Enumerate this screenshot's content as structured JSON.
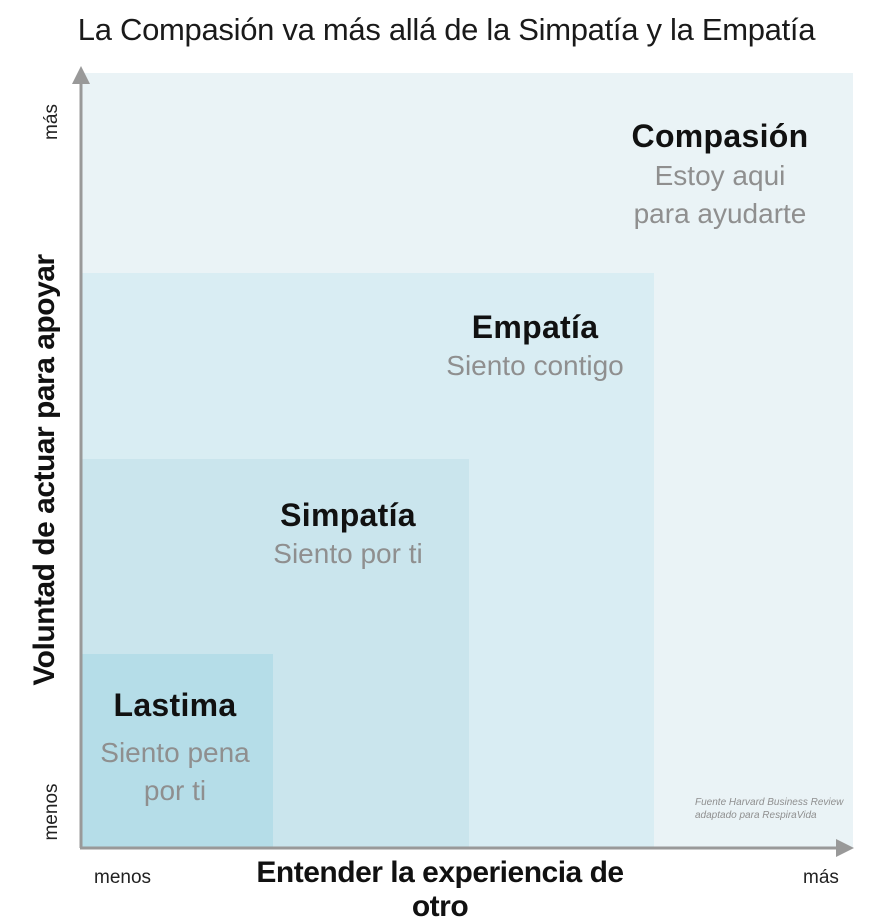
{
  "title": "La Compasión va más allá de la Simpatía y la Empatía",
  "axes": {
    "x_label": "Entender la experiencia de otro",
    "y_label": "Voluntad de actuar para apoyar",
    "x_low": "menos",
    "x_high": "más",
    "y_low": "menos",
    "y_high": "más"
  },
  "levels": [
    {
      "name": "Lastima",
      "description_lines": [
        "Siento pena",
        "por ti"
      ]
    },
    {
      "name": "Simpatía",
      "description_lines": [
        "Siento por ti"
      ]
    },
    {
      "name": "Empatía",
      "description_lines": [
        "Siento contigo"
      ]
    },
    {
      "name": "Compasión",
      "description_lines": [
        "Estoy aqui",
        "para ayudarte"
      ]
    }
  ],
  "source_lines": [
    "Fuente Harvard Business Review",
    "adaptado para RespiraVida"
  ],
  "colors": {
    "compasion_fill": "#eaf3f6",
    "empatia_fill": "#d9edf3",
    "simpatia_fill": "#cae5ed",
    "lastima_fill": "#b5dde8",
    "axis": "#999999"
  }
}
